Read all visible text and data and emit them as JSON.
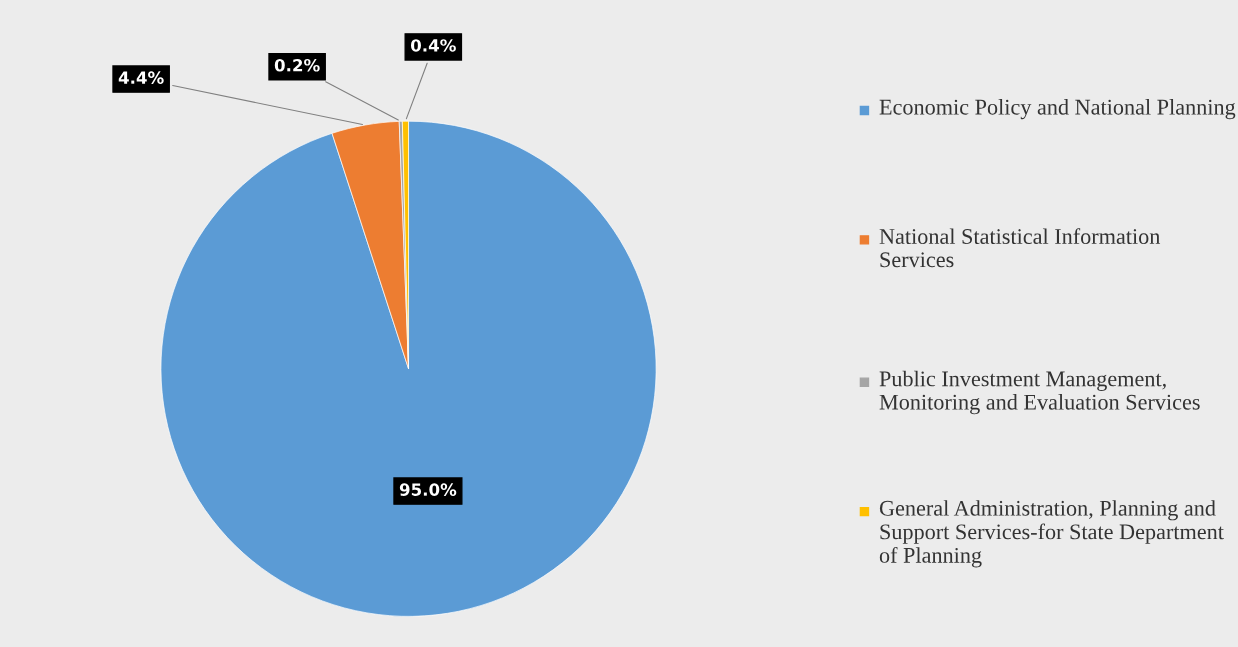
{
  "chart_data": {
    "type": "pie",
    "categories": [
      "Economic Policy and National Planning",
      "National Statistical Information Services",
      "Public Investment Management, Monitoring and Evaluation Services",
      "General Administration, Planning and Support Services-for State Department of Planning"
    ],
    "values": [
      95.0,
      4.4,
      0.2,
      0.4
    ],
    "colors": [
      "#5b9bd5",
      "#ed7d31",
      "#a5a5a5",
      "#ffc000"
    ],
    "value_labels": [
      "95.0%",
      "4.4%",
      "0.2%",
      "0.4%"
    ],
    "legend": "right"
  }
}
